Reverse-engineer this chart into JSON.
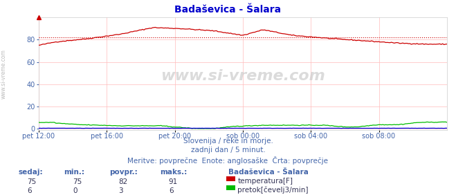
{
  "title": "Badaševica - Šalara",
  "bg_color": "#ffffff",
  "plot_bg_color": "#ffffff",
  "grid_color": "#ffbbbb",
  "xlabel_color": "#4466aa",
  "title_color": "#0000cc",
  "temp_color": "#cc0000",
  "flow_color": "#00bb00",
  "height_color": "#0000dd",
  "avg_line_color": "#cc0000",
  "avg_value": 82,
  "temp_min": 75,
  "temp_max": 91,
  "temp_avg": 82,
  "temp_now": 75,
  "flow_min": 0,
  "flow_max": 6,
  "flow_avg": 3,
  "flow_now": 6,
  "x_labels": [
    "pet 12:00",
    "pet 16:00",
    "pet 20:00",
    "sob 00:00",
    "sob 04:00",
    "sob 08:00"
  ],
  "y_ticks": [
    0,
    20,
    40,
    60,
    80
  ],
  "ylim_max": 100,
  "watermark": "www.si-vreme.com",
  "subtitle1": "Slovenija / reke in morje.",
  "subtitle2": "zadnji dan / 5 minut.",
  "subtitle3": "Meritve: povprečne  Enote: anglosaške  Črta: povprečje",
  "legend_title": "Badaševica - Šalara",
  "legend_temp": "temperatura[F]",
  "legend_flow": "pretok[čevelj3/min]",
  "table_headers": [
    "sedaj:",
    "min.:",
    "povpr.:",
    "maks.:"
  ],
  "table_temp": [
    75,
    75,
    82,
    91
  ],
  "table_flow": [
    6,
    0,
    3,
    6
  ]
}
